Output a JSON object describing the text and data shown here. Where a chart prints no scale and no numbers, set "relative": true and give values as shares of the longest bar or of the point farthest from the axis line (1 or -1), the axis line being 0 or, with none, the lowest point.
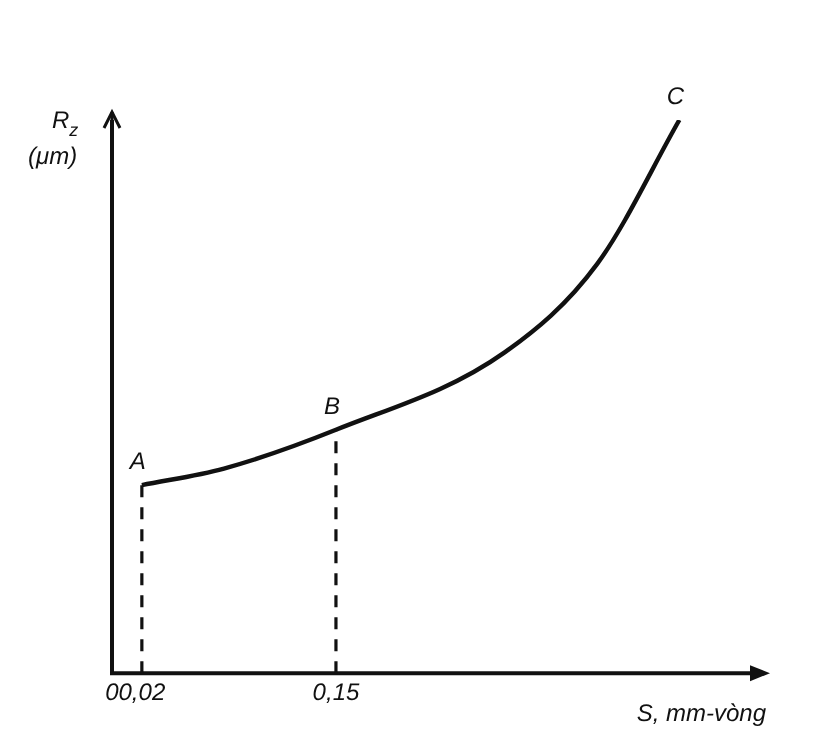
{
  "chart_data": {
    "type": "line",
    "relative": true,
    "xlabel": "S, mm-vòng",
    "ylabel": "R$_{z}$ (μm)",
    "x": [
      0.02,
      0.075,
      0.15,
      0.263,
      0.325,
      0.38
    ],
    "series": [
      {
        "color": "#111111",
        "values": [
          0.34,
          0.37,
          0.44,
          0.58,
          0.74,
          1
        ]
      }
    ],
    "xlim": [
      0,
      0.43
    ],
    "xticks": [
      0,
      {
        "value": 0.02,
        "label": "0,02"
      },
      {
        "value": 0.15,
        "label": "0,15"
      }
    ],
    "ref_lines": [
      {
        "axis": "x",
        "value": 0.02,
        "line_style": "dashed"
      },
      {
        "axis": "x",
        "value": 0.15,
        "line_style": "dashed"
      }
    ],
    "annotations": [
      {
        "text": "A",
        "x": 0.02,
        "y": 0.34
      },
      {
        "text": "B",
        "x": 0.15,
        "y": 0.44
      },
      {
        "text": "C",
        "x": 0.38,
        "y": 1
      }
    ],
    "marker": "none",
    "line_style": "solid",
    "grid": false,
    "legend": false
  }
}
